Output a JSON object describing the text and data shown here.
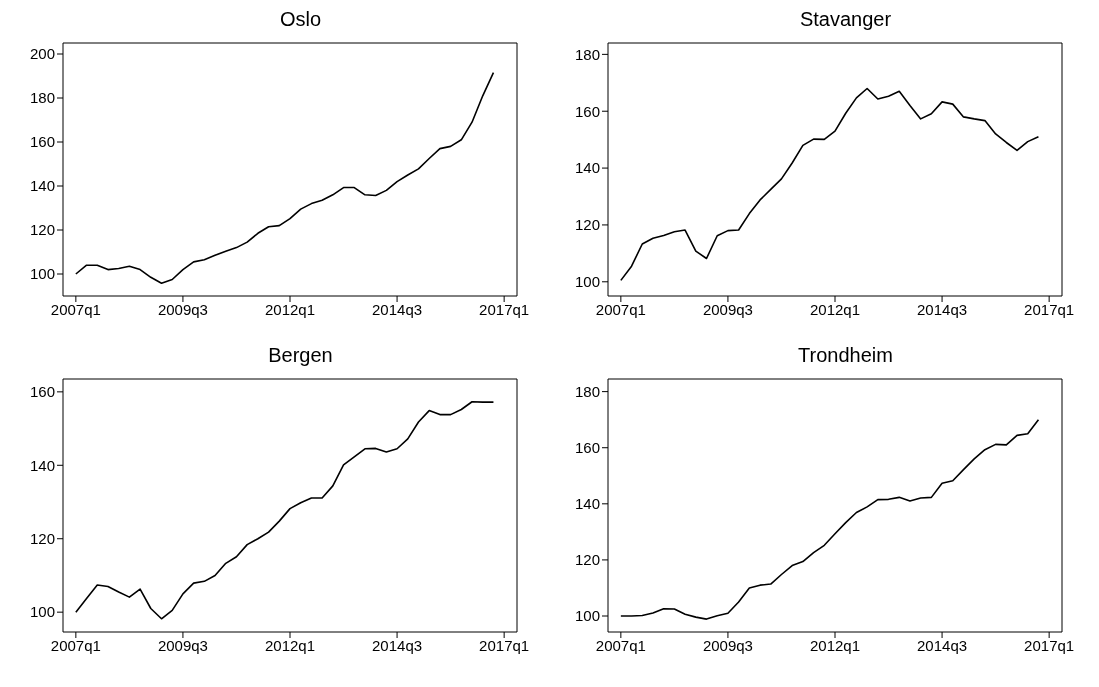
{
  "chart_data": [
    {
      "type": "line",
      "title": "Oslo",
      "categories": [
        "2007q1",
        null,
        null,
        null,
        null,
        null,
        null,
        null,
        null,
        null,
        "2009q3",
        null,
        null,
        null,
        null,
        null,
        null,
        null,
        null,
        null,
        "2012q1",
        null,
        null,
        null,
        null,
        null,
        null,
        null,
        null,
        null,
        "2014q3",
        null,
        null,
        null,
        null,
        null,
        null,
        null,
        null,
        null,
        "2017q1"
      ],
      "series": [
        {
          "color": "#000000",
          "values": [
            100,
            104,
            104,
            102,
            102.5,
            103.5,
            102,
            98.5,
            95.8,
            97.5,
            102,
            105.5,
            106.5,
            108.5,
            110.3,
            112,
            114.5,
            118.5,
            121.5,
            122,
            125.2,
            129.5,
            132,
            133.5,
            136,
            139.3,
            139.3,
            136,
            135.7,
            138,
            142,
            145,
            147.8,
            152.5,
            157,
            158,
            161,
            169,
            181,
            191.5,
            null
          ]
        }
      ],
      "ylim": [
        90,
        205
      ],
      "yticks": [
        100,
        120,
        140,
        160,
        180,
        200
      ]
    },
    {
      "type": "line",
      "title": "Stavanger",
      "categories": [
        "2007q1",
        null,
        null,
        null,
        null,
        null,
        null,
        null,
        null,
        null,
        "2009q3",
        null,
        null,
        null,
        null,
        null,
        null,
        null,
        null,
        null,
        "2012q1",
        null,
        null,
        null,
        null,
        null,
        null,
        null,
        null,
        null,
        "2014q3",
        null,
        null,
        null,
        null,
        null,
        null,
        null,
        null,
        null,
        "2017q1"
      ],
      "series": [
        {
          "color": "#000000",
          "values": [
            100.5,
            105.5,
            113.3,
            115.3,
            116.3,
            117.6,
            118.2,
            110.8,
            108.2,
            116.2,
            118,
            118.2,
            124,
            128.8,
            132.5,
            136.2,
            141.8,
            148,
            150.2,
            150.1,
            153,
            159.3,
            164.7,
            168,
            164.3,
            165.3,
            167,
            162,
            157.3,
            159.1,
            163.3,
            162.5,
            158,
            157.3,
            156.7,
            152,
            149,
            146.2,
            149.3,
            151,
            null
          ]
        }
      ],
      "ylim": [
        95,
        184
      ],
      "yticks": [
        100,
        120,
        140,
        160,
        180
      ]
    },
    {
      "type": "line",
      "title": "Bergen",
      "categories": [
        "2007q1",
        null,
        null,
        null,
        null,
        null,
        null,
        null,
        null,
        null,
        "2009q3",
        null,
        null,
        null,
        null,
        null,
        null,
        null,
        null,
        null,
        "2012q1",
        null,
        null,
        null,
        null,
        null,
        null,
        null,
        null,
        null,
        "2014q3",
        null,
        null,
        null,
        null,
        null,
        null,
        null,
        null,
        null,
        "2017q1"
      ],
      "series": [
        {
          "color": "#000000",
          "values": [
            100,
            103.7,
            107.4,
            107,
            105.5,
            104.1,
            106.3,
            101,
            98.2,
            100.5,
            105,
            107.9,
            108.4,
            110,
            113.3,
            115.1,
            118.4,
            120,
            121.8,
            124.8,
            128.2,
            129.8,
            131.1,
            131.1,
            134.4,
            140.1,
            142.3,
            144.5,
            144.6,
            143.6,
            144.5,
            147.2,
            151.8,
            154.9,
            153.8,
            153.8,
            155.2,
            157.3,
            157.2,
            157.2,
            null
          ]
        }
      ],
      "ylim": [
        94.6,
        163.5
      ],
      "yticks": [
        100,
        120,
        140,
        160
      ]
    },
    {
      "type": "line",
      "title": "Trondheim",
      "categories": [
        "2007q1",
        null,
        null,
        null,
        null,
        null,
        null,
        null,
        null,
        null,
        "2009q3",
        null,
        null,
        null,
        null,
        null,
        null,
        null,
        null,
        null,
        "2012q1",
        null,
        null,
        null,
        null,
        null,
        null,
        null,
        null,
        null,
        "2014q3",
        null,
        null,
        null,
        null,
        null,
        null,
        null,
        null,
        null,
        "2017q1"
      ],
      "series": [
        {
          "color": "#000000",
          "values": [
            100,
            100,
            100.2,
            101.1,
            102.6,
            102.5,
            100.6,
            99.6,
            98.9,
            100.1,
            101,
            105,
            110,
            111,
            111.4,
            114.8,
            118,
            119.4,
            122.6,
            125.2,
            129.3,
            133.3,
            136.9,
            138.9,
            141.5,
            141.6,
            142.3,
            141,
            142.1,
            142.3,
            147.3,
            148.2,
            152.2,
            156,
            159.3,
            161.2,
            161,
            164.4,
            165,
            170,
            null
          ]
        }
      ],
      "ylim": [
        94.3,
        184.5
      ],
      "yticks": [
        100,
        120,
        140,
        160,
        180
      ]
    }
  ]
}
